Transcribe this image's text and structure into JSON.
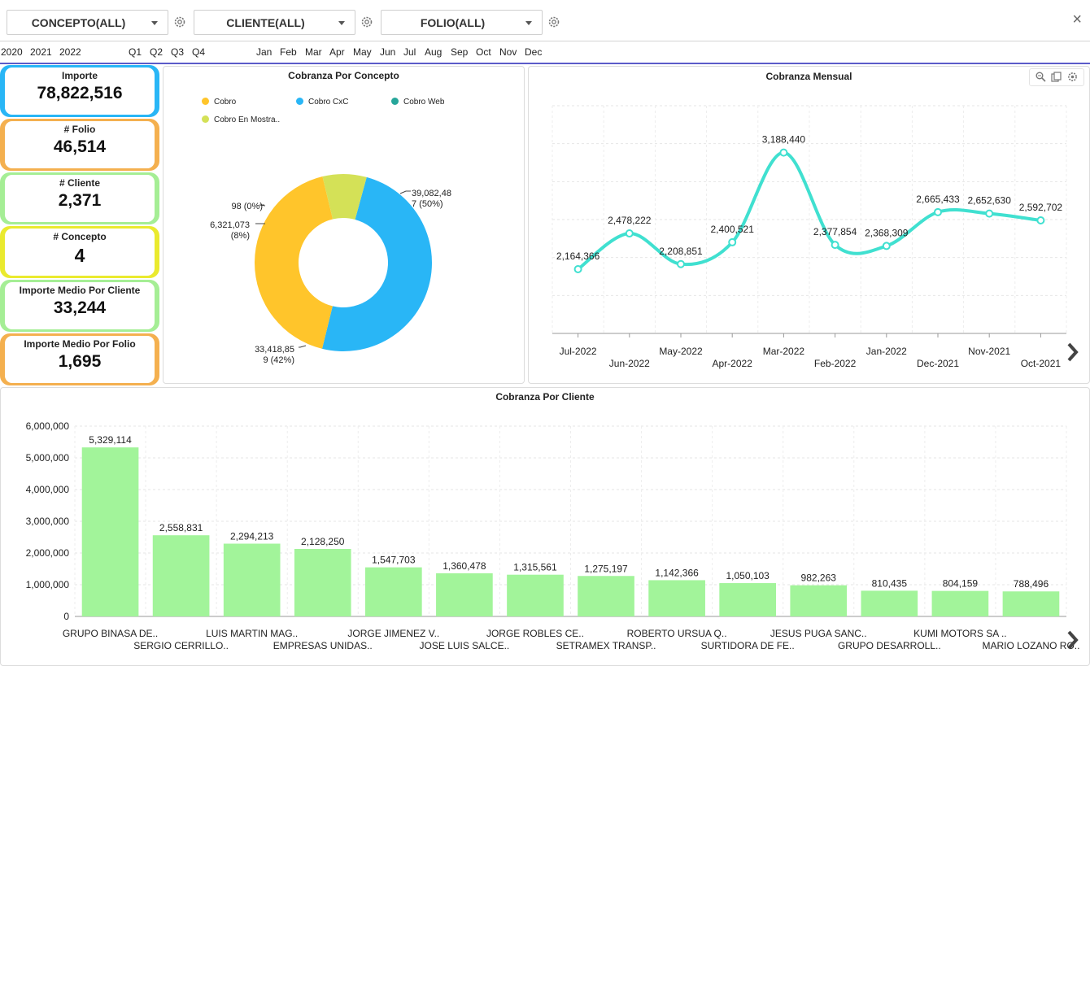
{
  "filters": [
    {
      "label": "CONCEPTO(ALL)"
    },
    {
      "label": "CLIENTE(ALL)"
    },
    {
      "label": "FOLIO(ALL)"
    }
  ],
  "close_label": "×",
  "years": [
    "2020",
    "2021",
    "2022"
  ],
  "quarters": [
    "Q1",
    "Q2",
    "Q3",
    "Q4"
  ],
  "months": [
    "Jan",
    "Feb",
    "Mar",
    "Apr",
    "May",
    "Jun",
    "Jul",
    "Aug",
    "Sep",
    "Oct",
    "Nov",
    "Dec"
  ],
  "kpis": [
    {
      "title": "Importe",
      "value": "78,822,516",
      "color": "#29b6f6"
    },
    {
      "title": "# Folio",
      "value": "46,514",
      "color": "#f4b04f"
    },
    {
      "title": "# Cliente",
      "value": "2,371",
      "color": "#a5ee95"
    },
    {
      "title": "# Concepto",
      "value": "4",
      "color": "#eaea2e"
    },
    {
      "title": "Importe Medio Por Cliente",
      "value": "33,244",
      "color": "#a5ee95"
    },
    {
      "title": "Importe Medio Por Folio",
      "value": "1,695",
      "color": "#f4b04f"
    }
  ],
  "concepto_panel": {
    "title": "Cobranza Por Concepto",
    "legend": [
      {
        "name": "Cobro",
        "color": "#ffc52b"
      },
      {
        "name": "Cobro CxC",
        "color": "#29b6f6"
      },
      {
        "name": "Cobro Web",
        "color": "#26a69a"
      },
      {
        "name": "Cobro En Mostra..",
        "color": "#d4e157"
      }
    ],
    "labels": {
      "cxc_1": "39,082,48",
      "cxc_2": "7 (50%)",
      "cobro_1": "33,418,85",
      "cobro_2": "9 (42%)",
      "mostrador_1": "6,321,073",
      "mostrador_2": "(8%)",
      "web": "98 (0%)"
    }
  },
  "mensual_panel": {
    "title": "Cobranza Mensual",
    "toolbar": [
      "zoom-icon",
      "export-icon",
      "gear-icon"
    ]
  },
  "cliente_panel": {
    "title": "Cobranza Por Cliente"
  },
  "chart_data": [
    {
      "type": "pie",
      "title": "Cobranza Por Concepto",
      "categories": [
        "Cobro CxC",
        "Cobro",
        "Cobro En Mostra..",
        "Cobro Web"
      ],
      "values": [
        39082487,
        33418859,
        6321073,
        98
      ],
      "percents": [
        50,
        42,
        8,
        0
      ],
      "colors": [
        "#29b6f6",
        "#ffc52b",
        "#d4e157",
        "#26a69a"
      ],
      "donut": true,
      "legend": "top"
    },
    {
      "type": "line",
      "title": "Cobranza Mensual",
      "categories": [
        "Jul-2022",
        "Jun-2022",
        "May-2022",
        "Apr-2022",
        "Mar-2022",
        "Feb-2022",
        "Jan-2022",
        "Dec-2021",
        "Nov-2021",
        "Oct-2021"
      ],
      "values": [
        2164366,
        2478222,
        2208851,
        2400521,
        3188440,
        2377854,
        2368309,
        2665433,
        2652630,
        2592702
      ],
      "value_labels": [
        "2,164,366",
        "2,478,222",
        "2,208,851",
        "2,400,521",
        "3,188,440",
        "2,377,854",
        "2,368,309",
        "2,665,433",
        "2,652,630",
        "2,592,702"
      ],
      "color": "#40e0d0",
      "grid": true
    },
    {
      "type": "bar",
      "title": "Cobranza Por Cliente",
      "categories": [
        "GRUPO BINASA DE..",
        "SERGIO CERRILLO..",
        "LUIS MARTIN MAG..",
        "EMPRESAS UNIDAS..",
        "JORGE JIMENEZ V..",
        "JOSE LUIS SALCE..",
        "JORGE ROBLES CE..",
        "SETRAMEX TRANSP..",
        "ROBERTO URSUA Q..",
        "SURTIDORA DE FE..",
        "JESUS PUGA SANC..",
        "GRUPO DESARROLL..",
        "KUMI MOTORS SA ..",
        "MARIO LOZANO RO.."
      ],
      "values": [
        5329114,
        2558831,
        2294213,
        2128250,
        1547703,
        1360478,
        1315561,
        1275197,
        1142366,
        1050103,
        982263,
        810435,
        804159,
        788496
      ],
      "value_labels": [
        "5,329,114",
        "2,558,831",
        "2,294,213",
        "2,128,250",
        "1,547,703",
        "1,360,478",
        "1,315,561",
        "1,275,197",
        "1,142,366",
        "1,050,103",
        "982,263",
        "810,435",
        "804,159",
        "788,496"
      ],
      "ylim": [
        0,
        6000000
      ],
      "yticks": [
        "0",
        "1,000,000",
        "2,000,000",
        "3,000,000",
        "4,000,000",
        "5,000,000",
        "6,000,000"
      ],
      "color": "#a2f49a",
      "grid": true
    }
  ]
}
